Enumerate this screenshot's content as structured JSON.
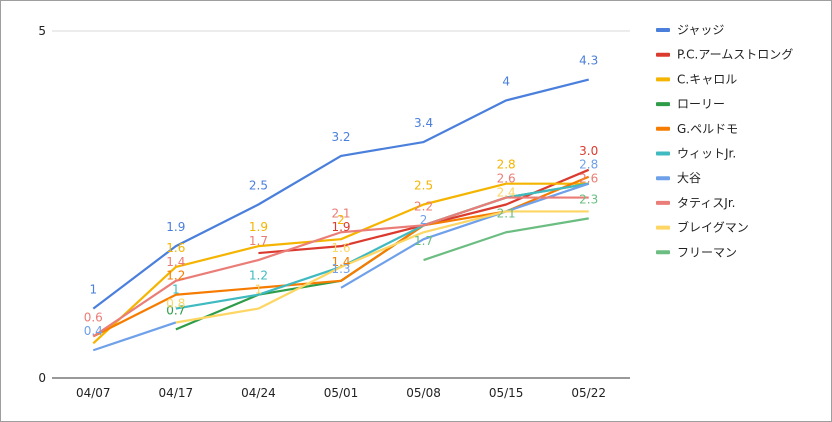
{
  "chart_data": {
    "type": "line",
    "title": "",
    "xlabel": "",
    "ylabel": "",
    "categories": [
      "04/07",
      "04/17",
      "04/24",
      "05/01",
      "05/08",
      "05/15",
      "05/22"
    ],
    "ylim": [
      0,
      5
    ],
    "yticks": [
      "0",
      "5"
    ],
    "grid": "horizontal",
    "legend_position": "right",
    "series": [
      {
        "name": "ジャッジ",
        "color": "#4a7fdc",
        "values": [
          1,
          1.9,
          2.5,
          3.2,
          3.4,
          4,
          4.3
        ],
        "labels": [
          "1",
          "1.9",
          "2.5",
          "3.2",
          "3.4",
          "4",
          "4.3"
        ]
      },
      {
        "name": "P.C.アームストロング",
        "color": "#db3b2f",
        "values": [
          null,
          null,
          1.8,
          1.9,
          2.2,
          2.5,
          3.0
        ],
        "labels": [
          null,
          null,
          "",
          "1.9",
          "",
          "",
          "3.0"
        ]
      },
      {
        "name": "C.キャロル",
        "color": "#f4b400",
        "values": [
          0.5,
          1.6,
          1.9,
          2.0,
          2.5,
          2.8,
          2.8
        ],
        "labels": [
          null,
          "1.6",
          "1.9",
          "2",
          "2.5",
          "2.8",
          ""
        ]
      },
      {
        "name": "ローリー",
        "color": "#2e9c48",
        "values": [
          null,
          0.7,
          1.2,
          1.4,
          2.2,
          2.6,
          2.8
        ],
        "labels": [
          null,
          "0.7",
          "",
          "",
          "",
          "",
          ""
        ]
      },
      {
        "name": "G.ペルドモ",
        "color": "#f57c00",
        "values": [
          0.6,
          1.2,
          1.3,
          1.4,
          2.2,
          2.4,
          2.9
        ],
        "labels": [
          "",
          "1.2",
          "",
          "1.4",
          "",
          "",
          ""
        ]
      },
      {
        "name": "ウィットJr.",
        "color": "#3ebac0",
        "values": [
          null,
          1.0,
          1.2,
          1.6,
          2.2,
          2.6,
          2.8
        ],
        "labels": [
          null,
          "1",
          "1.2",
          "",
          "",
          "",
          ""
        ]
      },
      {
        "name": "大谷",
        "color": "#6fa0ea",
        "values": [
          0.4,
          0.8,
          null,
          1.3,
          2.0,
          2.4,
          2.8
        ],
        "labels": [
          "0.4",
          "",
          null,
          "1.3",
          "2",
          "",
          "2.8"
        ]
      },
      {
        "name": "タティスJr.",
        "color": "#ea7d77",
        "values": [
          0.6,
          1.4,
          1.7,
          2.1,
          2.2,
          2.6,
          2.6
        ],
        "labels": [
          "0.6",
          "1.4",
          "1.7",
          "2.1",
          "2.2",
          "2.6",
          "2.6"
        ]
      },
      {
        "name": "ブレイグマン",
        "color": "#fdd663",
        "values": [
          null,
          0.8,
          1.0,
          1.6,
          2.1,
          2.4,
          2.4
        ],
        "labels": [
          null,
          "0.8",
          "1",
          "1.6",
          "",
          "2.4",
          ""
        ]
      },
      {
        "name": "フリーマン",
        "color": "#6cbd82",
        "values": [
          null,
          null,
          null,
          null,
          1.7,
          2.1,
          2.3
        ],
        "labels": [
          null,
          null,
          null,
          null,
          "1.7",
          "2.1",
          "2.3"
        ]
      }
    ]
  }
}
